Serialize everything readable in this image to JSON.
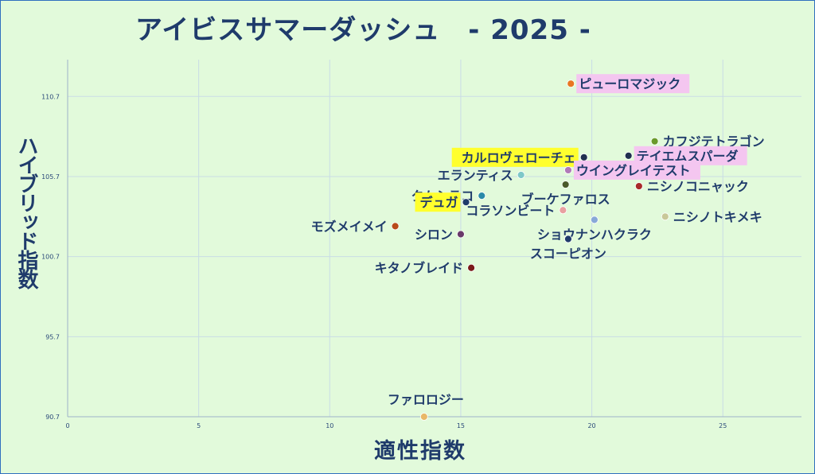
{
  "chart_data": {
    "type": "scatter",
    "title": "アイビスサマーダッシュ　- 2025 -",
    "xlabel": "適性指数",
    "ylabel": "ハイブリッド指数",
    "xlim": [
      0,
      28
    ],
    "ylim": [
      90.7,
      113
    ],
    "xticks": [
      0,
      5,
      10,
      15,
      20,
      25
    ],
    "yticks": [
      90.7,
      95.7,
      100.7,
      105.7,
      110.7
    ],
    "ytick_labels": [
      "90.7",
      "95.7",
      "100.7",
      "105.7",
      "110.7"
    ],
    "grid": true,
    "points": [
      {
        "name": "ピューロマジック",
        "x": 19.2,
        "y": 111.5,
        "color": "#e87722",
        "highlight": "pink",
        "label_side": "right"
      },
      {
        "name": "カフジテトラゴン",
        "x": 22.4,
        "y": 107.9,
        "color": "#6a9a2a",
        "highlight": "",
        "label_side": "right"
      },
      {
        "name": "カルロヴェローチェ",
        "x": 19.7,
        "y": 106.9,
        "color": "#1f2f4f",
        "highlight": "yellow",
        "label_side": "left"
      },
      {
        "name": "テイエムスパーダ",
        "x": 21.4,
        "y": 107.0,
        "color": "#1f2f4f",
        "highlight": "pink",
        "label_side": "right"
      },
      {
        "name": "ウイングレイテスト",
        "x": 19.1,
        "y": 106.1,
        "color": "#b07ab8",
        "highlight": "pink",
        "label_side": "right"
      },
      {
        "name": "エランティス",
        "x": 17.3,
        "y": 105.8,
        "color": "#7ec8c8",
        "highlight": "",
        "label_side": "left"
      },
      {
        "name": "ブーケファロス",
        "x": 19.0,
        "y": 105.2,
        "color": "#4a5a2a",
        "highlight": "",
        "label_side": "below"
      },
      {
        "name": "ニシノコニャック",
        "x": 21.8,
        "y": 105.1,
        "color": "#a82a2a",
        "highlight": "",
        "label_side": "right"
      },
      {
        "name": "クムシラコ",
        "x": 15.8,
        "y": 104.5,
        "color": "#2a8aa8",
        "highlight": "",
        "label_side": "left"
      },
      {
        "name": "デュガ",
        "x": 15.2,
        "y": 104.1,
        "color": "#1f3b6b",
        "highlight": "yellow",
        "label_side": "left"
      },
      {
        "name": "コラソンビート",
        "x": 18.9,
        "y": 103.6,
        "color": "#e8a0a0",
        "highlight": "",
        "label_side": "left"
      },
      {
        "name": "ニシノトキメキ",
        "x": 22.8,
        "y": 103.2,
        "color": "#c8c898",
        "highlight": "",
        "label_side": "right"
      },
      {
        "name": "ショウナンハクラク",
        "x": 20.1,
        "y": 103.0,
        "color": "#88a8d8",
        "highlight": "",
        "label_side": "below"
      },
      {
        "name": "モズメイメイ",
        "x": 12.5,
        "y": 102.6,
        "color": "#b84a1a",
        "highlight": "",
        "label_side": "left"
      },
      {
        "name": "シロン",
        "x": 15.0,
        "y": 102.1,
        "color": "#6a3a6a",
        "highlight": "",
        "label_side": "left"
      },
      {
        "name": "スコーピオン",
        "x": 19.1,
        "y": 101.8,
        "color": "#1f3b6b",
        "highlight": "",
        "label_side": "below"
      },
      {
        "name": "キタノブレイド",
        "x": 15.4,
        "y": 100.0,
        "color": "#7a1a1a",
        "highlight": "",
        "label_side": "left"
      },
      {
        "name": "ファロロジー",
        "x": 13.6,
        "y": 90.7,
        "color": "#e8b868",
        "highlight": "",
        "label_side": "above"
      }
    ]
  }
}
